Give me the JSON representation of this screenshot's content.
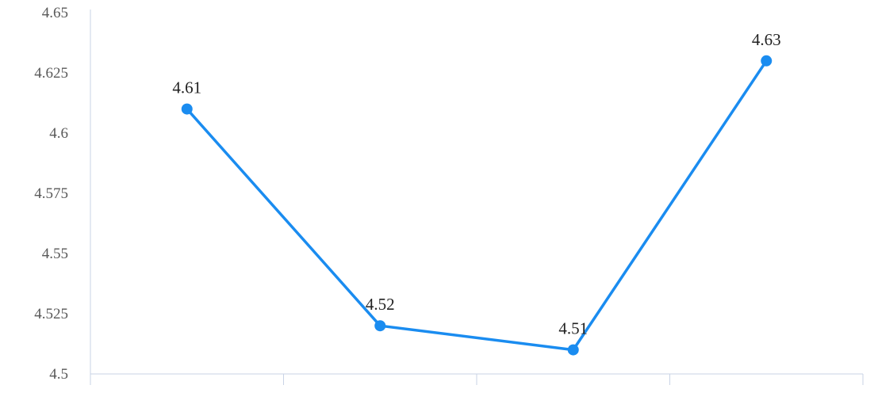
{
  "chart_data": {
    "type": "line",
    "title": "",
    "xlabel": "",
    "ylabel": "",
    "categories": [
      "",
      "",
      "",
      ""
    ],
    "series": [
      {
        "values": [
          4.61,
          4.52,
          4.51,
          4.63
        ]
      }
    ],
    "data_labels": [
      "4.61",
      "4.52",
      "4.51",
      "4.63"
    ],
    "ylim": [
      4.5,
      4.65
    ],
    "yticks": [
      4.5,
      4.525,
      4.55,
      4.575,
      4.6,
      4.625,
      4.65
    ],
    "ytick_labels": [
      "4.5",
      "4.525",
      "4.55",
      "4.575",
      "4.6",
      "4.625",
      "4.65"
    ],
    "grid": false,
    "legend": "none",
    "colors": {
      "line": "#1a8cf0",
      "axis": "#c9d3e6"
    }
  }
}
